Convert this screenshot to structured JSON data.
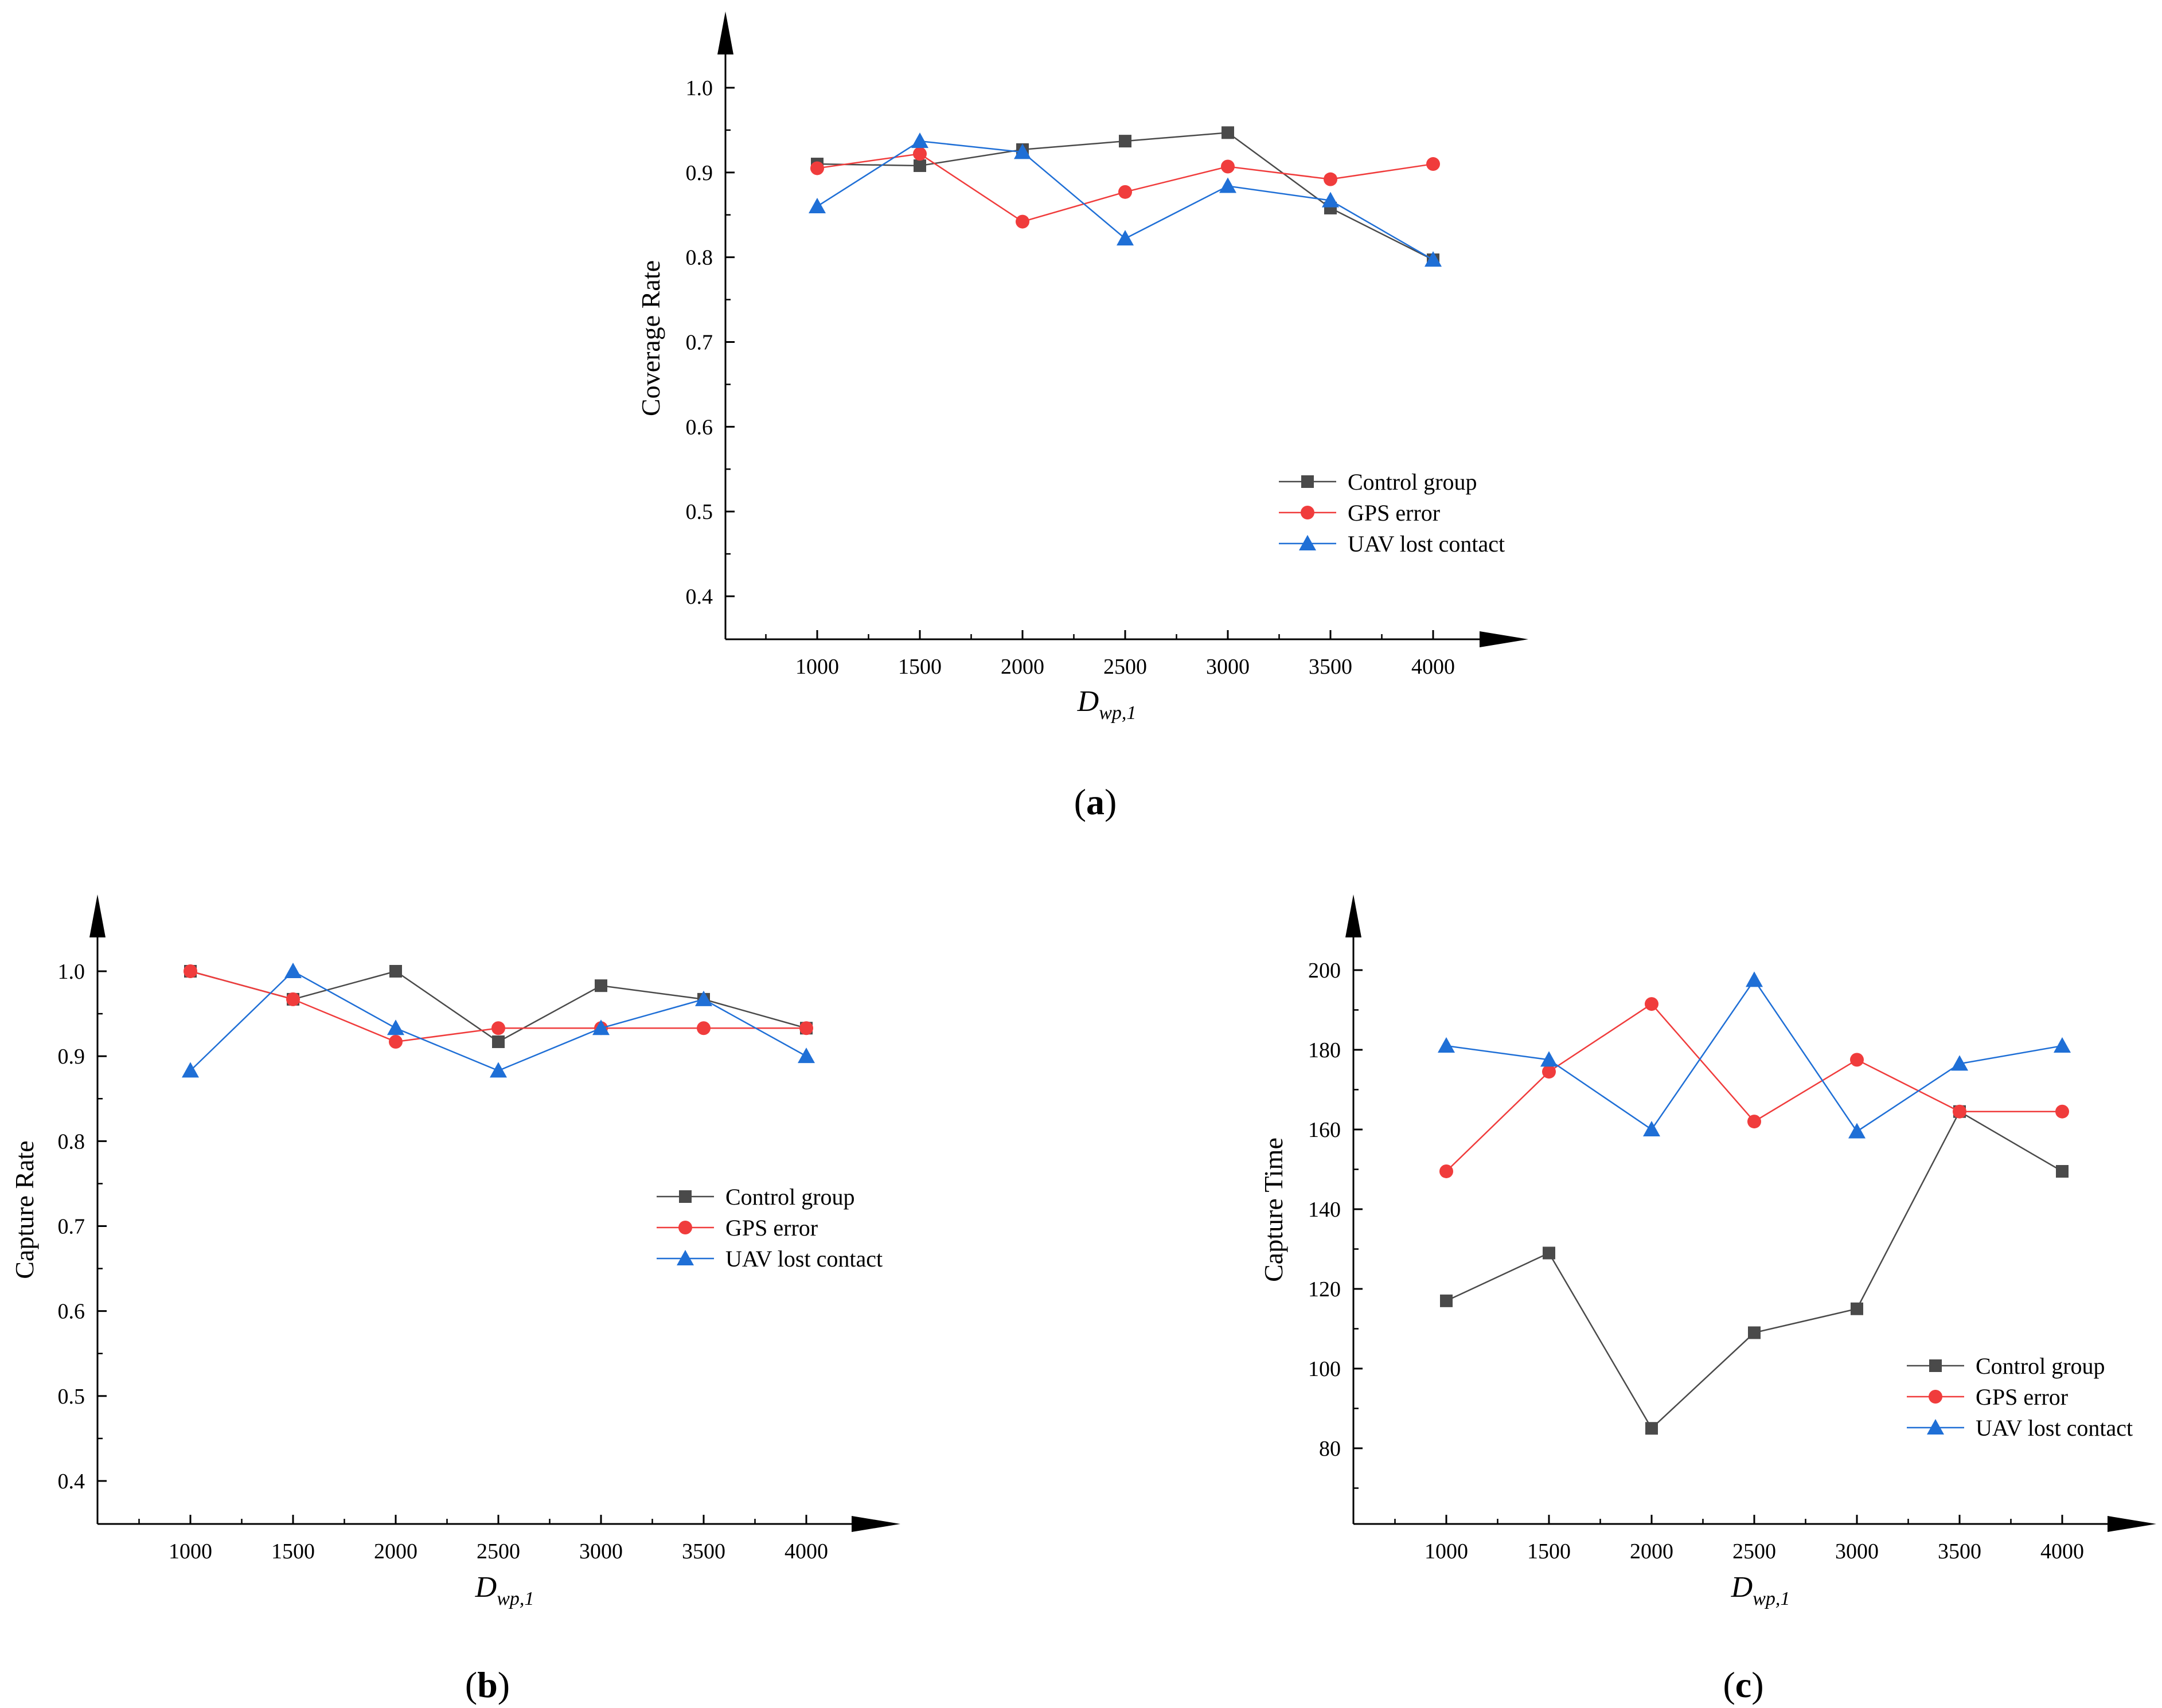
{
  "chart_data": [
    {
      "type": "line",
      "panel_label": "(a)",
      "x": [
        1000,
        1500,
        2000,
        2500,
        3000,
        3500,
        4000
      ],
      "xlabel": "D",
      "xlabel_sub": "wp,1",
      "ylabel": "Coverage Rate",
      "ylim": [
        0.35,
        1.1
      ],
      "yticks": [
        0.4,
        0.5,
        0.6,
        0.7,
        0.8,
        0.9,
        1.0
      ],
      "ytick_labels": [
        "0.4",
        "0.5",
        "0.6",
        "0.7",
        "0.8",
        "0.9",
        "1.0"
      ],
      "xtick_labels": [
        "1000",
        "1500",
        "2000",
        "2500",
        "3000",
        "3500",
        "4000"
      ],
      "grid": false,
      "legend_position": "bottom-right",
      "series": [
        {
          "name": "Control group",
          "color": "#4a4a4a",
          "marker": "square",
          "values": [
            0.91,
            0.908,
            0.927,
            0.937,
            0.947,
            0.858,
            0.797
          ]
        },
        {
          "name": "GPS error",
          "color": "#f03c3c",
          "marker": "circle",
          "values": [
            0.905,
            0.922,
            0.842,
            0.877,
            0.907,
            0.892,
            0.91
          ]
        },
        {
          "name": "UAV lost contact",
          "color": "#1f6fd6",
          "marker": "triangle",
          "values": [
            0.86,
            0.937,
            0.924,
            0.822,
            0.884,
            0.867,
            0.797
          ]
        }
      ]
    },
    {
      "type": "line",
      "panel_label": "(b)",
      "x": [
        1000,
        1500,
        2000,
        2500,
        3000,
        3500,
        4000
      ],
      "xlabel": "D",
      "xlabel_sub": "wp,1",
      "ylabel": "Capture Rate",
      "ylim": [
        0.35,
        1.1
      ],
      "yticks": [
        0.4,
        0.5,
        0.6,
        0.7,
        0.8,
        0.9,
        1.0
      ],
      "ytick_labels": [
        "0.4",
        "0.5",
        "0.6",
        "0.7",
        "0.8",
        "0.9",
        "1.0"
      ],
      "xtick_labels": [
        "1000",
        "1500",
        "2000",
        "2500",
        "3000",
        "3500",
        "4000"
      ],
      "grid": false,
      "legend_position": "center-right",
      "series": [
        {
          "name": "Control group",
          "color": "#4a4a4a",
          "marker": "square",
          "values": [
            1.0,
            0.967,
            1.0,
            0.917,
            0.983,
            0.967,
            0.933
          ]
        },
        {
          "name": "GPS error",
          "color": "#f03c3c",
          "marker": "circle",
          "values": [
            1.0,
            0.967,
            0.917,
            0.933,
            0.933,
            0.933,
            0.933
          ]
        },
        {
          "name": "UAV lost contact",
          "color": "#1f6fd6",
          "marker": "triangle",
          "values": [
            0.883,
            1.0,
            0.933,
            0.883,
            0.933,
            0.967,
            0.9
          ]
        }
      ]
    },
    {
      "type": "line",
      "panel_label": "(c)",
      "x": [
        1000,
        1500,
        2000,
        2500,
        3000,
        3500,
        4000
      ],
      "xlabel": "D",
      "xlabel_sub": "wp,1",
      "ylabel": "Capture Time",
      "ylim": [
        61,
        218
      ],
      "yticks": [
        80,
        100,
        120,
        140,
        160,
        180,
        200
      ],
      "ytick_labels": [
        "80",
        "100",
        "120",
        "140",
        "160",
        "180",
        "200"
      ],
      "xtick_labels": [
        "1000",
        "1500",
        "2000",
        "2500",
        "3000",
        "3500",
        "4000"
      ],
      "grid": false,
      "legend_position": "bottom-right",
      "series": [
        {
          "name": "Control group",
          "color": "#4a4a4a",
          "marker": "square",
          "values": [
            117,
            129,
            85,
            109,
            115,
            164.5,
            149.5
          ]
        },
        {
          "name": "GPS error",
          "color": "#f03c3c",
          "marker": "circle",
          "values": [
            149.5,
            174.5,
            191.5,
            162,
            177.5,
            164.5,
            164.5
          ]
        },
        {
          "name": "UAV lost contact",
          "color": "#1f6fd6",
          "marker": "triangle",
          "values": [
            181,
            177.5,
            160,
            197.5,
            159.5,
            176.5,
            181
          ]
        }
      ]
    }
  ]
}
